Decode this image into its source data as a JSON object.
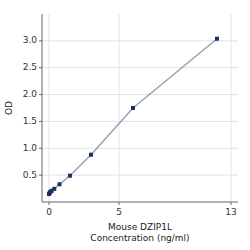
{
  "chart_data": {
    "type": "line",
    "xlabel": "Mouse DZIP1L\nConcentration (ng/ml)",
    "ylabel": "OD",
    "x": [
      0,
      0.047,
      0.094,
      0.188,
      0.375,
      0.75,
      1.5,
      3,
      6,
      12
    ],
    "values": [
      0.148,
      0.171,
      0.188,
      0.208,
      0.245,
      0.33,
      0.49,
      0.88,
      1.75,
      3.04
    ],
    "color": "#1a3060",
    "marker": "square",
    "xlim": [
      -0.5,
      13.5
    ],
    "ylim": [
      0.0,
      3.5
    ],
    "xticks": [
      0,
      5,
      13
    ],
    "yticks": [
      0.5,
      {
        "value": 1.0,
        "label": "1.0"
      },
      1.5,
      {
        "value": 2.0,
        "label": "2.0"
      },
      2.5,
      {
        "value": 3.0,
        "label": "3.0"
      }
    ],
    "grid": true
  }
}
